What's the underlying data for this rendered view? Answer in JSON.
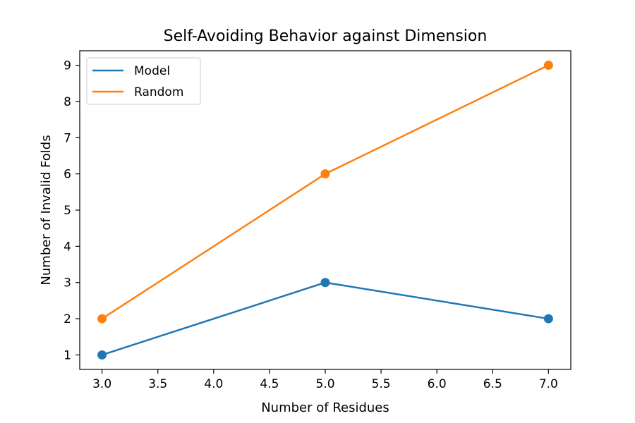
{
  "chart_data": {
    "type": "line",
    "title": "Self-Avoiding Behavior against Dimension",
    "xlabel": "Number of Residues",
    "ylabel": "Number of Invalid Folds",
    "x": [
      3,
      5,
      7
    ],
    "series": [
      {
        "name": "Model",
        "values": [
          1,
          3,
          2
        ],
        "color": "#1f77b4"
      },
      {
        "name": "Random",
        "values": [
          2,
          6,
          9
        ],
        "color": "#ff7f0e"
      }
    ],
    "xlim": [
      2.8,
      7.2
    ],
    "ylim": [
      0.6,
      9.4
    ],
    "xticks": [
      "3.0",
      "3.5",
      "4.0",
      "4.5",
      "5.0",
      "5.5",
      "6.0",
      "6.5",
      "7.0"
    ],
    "yticks": [
      "1",
      "2",
      "3",
      "4",
      "5",
      "6",
      "7",
      "8",
      "9"
    ],
    "grid": false,
    "legend_position": "upper-left",
    "markers": true
  }
}
